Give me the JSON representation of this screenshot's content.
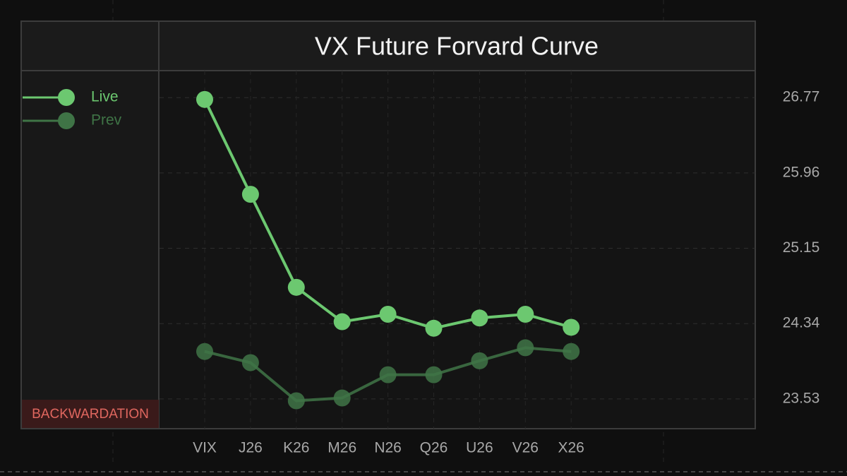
{
  "chart_data": {
    "type": "line",
    "title": "VX Future Forvard Curve",
    "categories": [
      "VIX",
      "J26",
      "K26",
      "M26",
      "N26",
      "Q26",
      "U26",
      "V26",
      "X26"
    ],
    "series": [
      {
        "name": "Live",
        "color": "#6cc870",
        "values": [
          26.75,
          25.73,
          24.73,
          24.36,
          24.44,
          24.29,
          24.4,
          24.44,
          24.3
        ]
      },
      {
        "name": "Prev",
        "color": "#3f7446",
        "values": [
          24.04,
          23.92,
          23.51,
          23.54,
          23.79,
          23.79,
          23.94,
          24.08,
          24.04
        ]
      }
    ],
    "ylim": [
      23.21,
      27.06
    ],
    "yticks": [
      23.53,
      24.34,
      25.15,
      25.96,
      26.77
    ],
    "grid": true,
    "legend": "top-left",
    "annotation": "BACKWARDATION"
  }
}
